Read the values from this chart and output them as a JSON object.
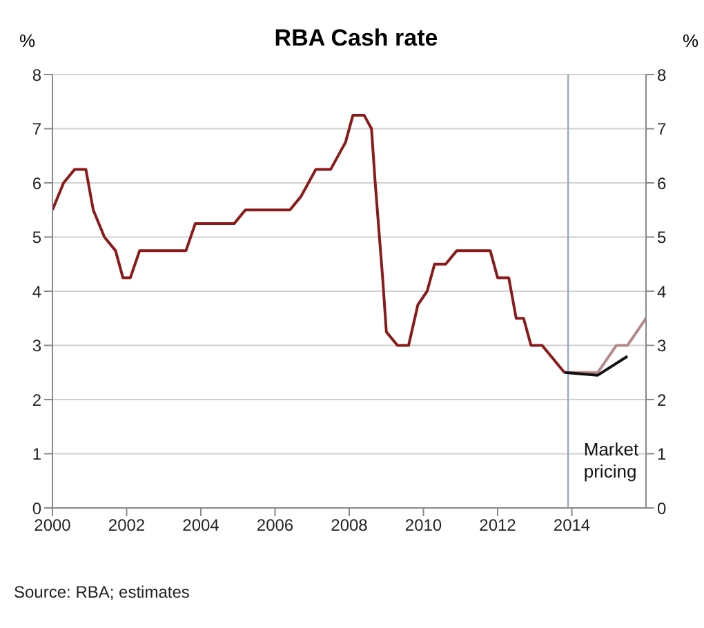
{
  "chart_data": {
    "type": "line",
    "title": "RBA Cash rate",
    "ylabel": "%",
    "y2label": "%",
    "xlim": [
      2000,
      2016
    ],
    "xticks": [
      2000,
      2002,
      2004,
      2006,
      2008,
      2010,
      2012,
      2014
    ],
    "ylim": [
      0,
      8
    ],
    "yticks": [
      0,
      1,
      2,
      3,
      4,
      5,
      6,
      7,
      8
    ],
    "y2lim": [
      0,
      8
    ],
    "y2ticks": [
      0,
      1,
      2,
      3,
      4,
      5,
      6,
      7,
      8
    ],
    "grid": "y",
    "legend": false,
    "marker": "none",
    "line_style": "solid",
    "ref_lines": [
      {
        "axis": "x",
        "value": 2013.9,
        "color": "#9aaabb"
      }
    ],
    "annotations": [
      "Source: RBA; estimates"
    ],
    "series": [
      {
        "color": "#8b1a1a",
        "x": [
          2000.0,
          2000.3,
          2000.6,
          2000.9,
          2001.1,
          2001.4,
          2001.7,
          2001.9,
          2002.1,
          2002.35,
          2003.6,
          2003.85,
          2004.9,
          2005.2,
          2006.4,
          2006.7,
          2006.9,
          2007.1,
          2007.5,
          2007.9,
          2008.1,
          2008.4,
          2008.6,
          2008.7,
          2008.9,
          2009.0,
          2009.3,
          2009.6,
          2009.85,
          2010.1,
          2010.3,
          2010.6,
          2010.9,
          2011.8,
          2012.0,
          2012.3,
          2012.5,
          2012.7,
          2012.9,
          2013.2,
          2013.8
        ],
        "values": [
          5.5,
          6.0,
          6.25,
          6.25,
          5.5,
          5.0,
          4.75,
          4.25,
          4.25,
          4.75,
          4.75,
          5.25,
          5.25,
          5.5,
          5.5,
          5.75,
          6.0,
          6.25,
          6.25,
          6.75,
          7.25,
          7.25,
          7.0,
          6.0,
          4.25,
          3.25,
          3.0,
          3.0,
          3.75,
          4.0,
          4.5,
          4.5,
          4.75,
          4.75,
          4.25,
          4.25,
          3.5,
          3.5,
          3.0,
          3.0,
          2.5
        ]
      },
      {
        "color": "#b58a8a",
        "x": [
          2013.8,
          2014.7,
          2015.2,
          2015.5,
          2016.0
        ],
        "values": [
          2.5,
          2.5,
          3.0,
          3.0,
          3.5
        ]
      },
      {
        "name": "Market pricing",
        "color": "#111111",
        "x": [
          2013.8,
          2014.3,
          2014.7,
          2015.5
        ],
        "values": [
          2.5,
          2.47,
          2.45,
          2.8
        ]
      }
    ]
  }
}
